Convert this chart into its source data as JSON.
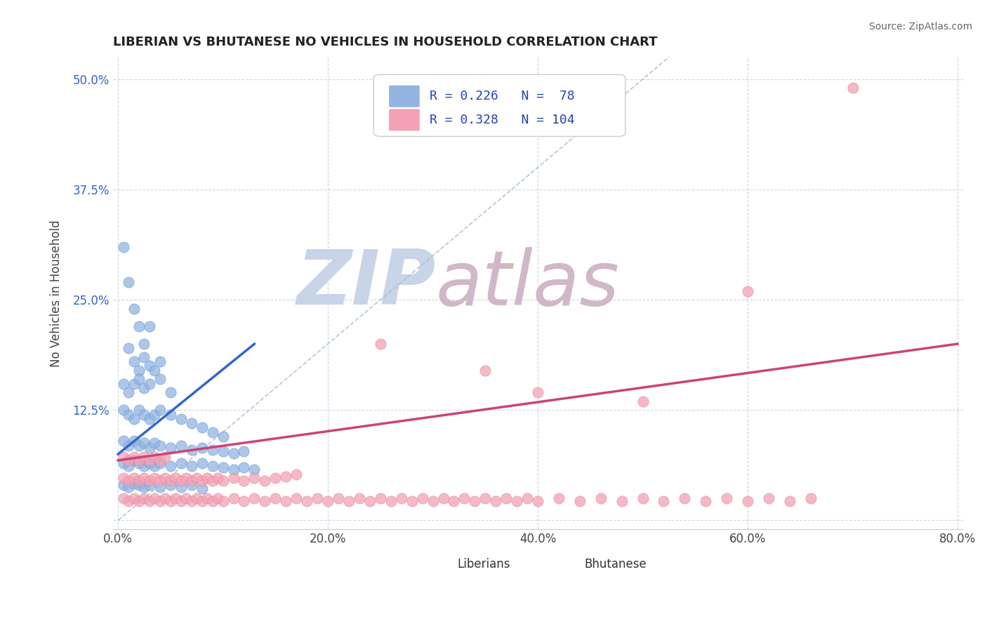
{
  "title": "LIBERIAN VS BHUTANESE NO VEHICLES IN HOUSEHOLD CORRELATION CHART",
  "source": "Source: ZipAtlas.com",
  "ylabel": "No Vehicles in Household",
  "xlabel": "",
  "xlim": [
    -0.005,
    0.805
  ],
  "ylim": [
    -0.01,
    0.525
  ],
  "xticks": [
    0.0,
    0.2,
    0.4,
    0.6,
    0.8
  ],
  "xticklabels": [
    "0.0%",
    "20.0%",
    "40.0%",
    "60.0%",
    "80.0%"
  ],
  "yticks": [
    0.0,
    0.125,
    0.25,
    0.375,
    0.5
  ],
  "yticklabels": [
    "",
    "12.5%",
    "25.0%",
    "37.5%",
    "50.0%"
  ],
  "liberian_color": "#92b4e3",
  "bhutanese_color": "#f4a0b5",
  "liberian_line_color": "#3366cc",
  "bhutanese_line_color": "#cc4477",
  "diagonal_color": "#aabbcc",
  "watermark_zip_color": "#c8d4e8",
  "watermark_atlas_color": "#d0b8c8",
  "legend_text_color": "#2244bb",
  "legend_R1": "0.226",
  "legend_N1": "78",
  "legend_R2": "0.328",
  "legend_N2": "104",
  "liberian_scatter": [
    [
      0.005,
      0.31
    ],
    [
      0.01,
      0.27
    ],
    [
      0.015,
      0.24
    ],
    [
      0.02,
      0.22
    ],
    [
      0.025,
      0.2
    ],
    [
      0.03,
      0.22
    ],
    [
      0.01,
      0.195
    ],
    [
      0.015,
      0.18
    ],
    [
      0.02,
      0.17
    ],
    [
      0.025,
      0.185
    ],
    [
      0.03,
      0.175
    ],
    [
      0.035,
      0.17
    ],
    [
      0.04,
      0.18
    ],
    [
      0.005,
      0.155
    ],
    [
      0.01,
      0.145
    ],
    [
      0.015,
      0.155
    ],
    [
      0.02,
      0.16
    ],
    [
      0.025,
      0.15
    ],
    [
      0.03,
      0.155
    ],
    [
      0.04,
      0.16
    ],
    [
      0.05,
      0.145
    ],
    [
      0.005,
      0.125
    ],
    [
      0.01,
      0.12
    ],
    [
      0.015,
      0.115
    ],
    [
      0.02,
      0.125
    ],
    [
      0.025,
      0.12
    ],
    [
      0.03,
      0.115
    ],
    [
      0.035,
      0.12
    ],
    [
      0.04,
      0.125
    ],
    [
      0.05,
      0.12
    ],
    [
      0.06,
      0.115
    ],
    [
      0.07,
      0.11
    ],
    [
      0.08,
      0.105
    ],
    [
      0.09,
      0.1
    ],
    [
      0.1,
      0.095
    ],
    [
      0.005,
      0.09
    ],
    [
      0.01,
      0.085
    ],
    [
      0.015,
      0.09
    ],
    [
      0.02,
      0.085
    ],
    [
      0.025,
      0.088
    ],
    [
      0.03,
      0.082
    ],
    [
      0.035,
      0.088
    ],
    [
      0.04,
      0.085
    ],
    [
      0.05,
      0.082
    ],
    [
      0.06,
      0.085
    ],
    [
      0.07,
      0.08
    ],
    [
      0.08,
      0.082
    ],
    [
      0.09,
      0.08
    ],
    [
      0.1,
      0.078
    ],
    [
      0.11,
      0.076
    ],
    [
      0.12,
      0.078
    ],
    [
      0.005,
      0.065
    ],
    [
      0.01,
      0.062
    ],
    [
      0.015,
      0.068
    ],
    [
      0.02,
      0.065
    ],
    [
      0.025,
      0.062
    ],
    [
      0.03,
      0.065
    ],
    [
      0.035,
      0.062
    ],
    [
      0.04,
      0.065
    ],
    [
      0.05,
      0.062
    ],
    [
      0.06,
      0.065
    ],
    [
      0.07,
      0.062
    ],
    [
      0.08,
      0.065
    ],
    [
      0.09,
      0.062
    ],
    [
      0.1,
      0.06
    ],
    [
      0.11,
      0.058
    ],
    [
      0.12,
      0.06
    ],
    [
      0.13,
      0.058
    ],
    [
      0.005,
      0.04
    ],
    [
      0.01,
      0.038
    ],
    [
      0.015,
      0.042
    ],
    [
      0.02,
      0.04
    ],
    [
      0.025,
      0.038
    ],
    [
      0.03,
      0.04
    ],
    [
      0.04,
      0.038
    ],
    [
      0.05,
      0.04
    ],
    [
      0.06,
      0.038
    ],
    [
      0.07,
      0.04
    ],
    [
      0.08,
      0.036
    ]
  ],
  "bhutanese_scatter": [
    [
      0.005,
      0.072
    ],
    [
      0.01,
      0.068
    ],
    [
      0.015,
      0.072
    ],
    [
      0.02,
      0.068
    ],
    [
      0.025,
      0.072
    ],
    [
      0.03,
      0.068
    ],
    [
      0.035,
      0.072
    ],
    [
      0.04,
      0.068
    ],
    [
      0.045,
      0.072
    ],
    [
      0.005,
      0.048
    ],
    [
      0.01,
      0.045
    ],
    [
      0.015,
      0.048
    ],
    [
      0.02,
      0.045
    ],
    [
      0.025,
      0.048
    ],
    [
      0.03,
      0.045
    ],
    [
      0.035,
      0.048
    ],
    [
      0.04,
      0.045
    ],
    [
      0.045,
      0.048
    ],
    [
      0.05,
      0.045
    ],
    [
      0.055,
      0.048
    ],
    [
      0.06,
      0.045
    ],
    [
      0.065,
      0.048
    ],
    [
      0.07,
      0.045
    ],
    [
      0.075,
      0.048
    ],
    [
      0.08,
      0.045
    ],
    [
      0.085,
      0.048
    ],
    [
      0.09,
      0.045
    ],
    [
      0.095,
      0.048
    ],
    [
      0.1,
      0.045
    ],
    [
      0.11,
      0.048
    ],
    [
      0.12,
      0.045
    ],
    [
      0.13,
      0.048
    ],
    [
      0.14,
      0.045
    ],
    [
      0.15,
      0.048
    ],
    [
      0.16,
      0.05
    ],
    [
      0.17,
      0.052
    ],
    [
      0.005,
      0.025
    ],
    [
      0.01,
      0.022
    ],
    [
      0.015,
      0.025
    ],
    [
      0.02,
      0.022
    ],
    [
      0.025,
      0.025
    ],
    [
      0.03,
      0.022
    ],
    [
      0.035,
      0.025
    ],
    [
      0.04,
      0.022
    ],
    [
      0.045,
      0.025
    ],
    [
      0.05,
      0.022
    ],
    [
      0.055,
      0.025
    ],
    [
      0.06,
      0.022
    ],
    [
      0.065,
      0.025
    ],
    [
      0.07,
      0.022
    ],
    [
      0.075,
      0.025
    ],
    [
      0.08,
      0.022
    ],
    [
      0.085,
      0.025
    ],
    [
      0.09,
      0.022
    ],
    [
      0.095,
      0.025
    ],
    [
      0.1,
      0.022
    ],
    [
      0.11,
      0.025
    ],
    [
      0.12,
      0.022
    ],
    [
      0.13,
      0.025
    ],
    [
      0.14,
      0.022
    ],
    [
      0.15,
      0.025
    ],
    [
      0.16,
      0.022
    ],
    [
      0.17,
      0.025
    ],
    [
      0.18,
      0.022
    ],
    [
      0.19,
      0.025
    ],
    [
      0.2,
      0.022
    ],
    [
      0.21,
      0.025
    ],
    [
      0.22,
      0.022
    ],
    [
      0.23,
      0.025
    ],
    [
      0.24,
      0.022
    ],
    [
      0.25,
      0.025
    ],
    [
      0.26,
      0.022
    ],
    [
      0.27,
      0.025
    ],
    [
      0.28,
      0.022
    ],
    [
      0.29,
      0.025
    ],
    [
      0.3,
      0.022
    ],
    [
      0.31,
      0.025
    ],
    [
      0.32,
      0.022
    ],
    [
      0.33,
      0.025
    ],
    [
      0.34,
      0.022
    ],
    [
      0.35,
      0.025
    ],
    [
      0.36,
      0.022
    ],
    [
      0.37,
      0.025
    ],
    [
      0.38,
      0.022
    ],
    [
      0.39,
      0.025
    ],
    [
      0.4,
      0.022
    ],
    [
      0.42,
      0.025
    ],
    [
      0.44,
      0.022
    ],
    [
      0.46,
      0.025
    ],
    [
      0.48,
      0.022
    ],
    [
      0.5,
      0.025
    ],
    [
      0.52,
      0.022
    ],
    [
      0.54,
      0.025
    ],
    [
      0.56,
      0.022
    ],
    [
      0.58,
      0.025
    ],
    [
      0.6,
      0.022
    ],
    [
      0.62,
      0.025
    ],
    [
      0.64,
      0.022
    ],
    [
      0.66,
      0.025
    ],
    [
      0.25,
      0.2
    ],
    [
      0.35,
      0.17
    ],
    [
      0.4,
      0.145
    ],
    [
      0.5,
      0.135
    ],
    [
      0.6,
      0.26
    ],
    [
      0.7,
      0.49
    ]
  ],
  "lib_line_x0": 0.0,
  "lib_line_y0": 0.075,
  "lib_line_x1": 0.13,
  "lib_line_y1": 0.2,
  "bhu_line_x0": 0.0,
  "bhu_line_y0": 0.068,
  "bhu_line_x1": 0.8,
  "bhu_line_y1": 0.2
}
